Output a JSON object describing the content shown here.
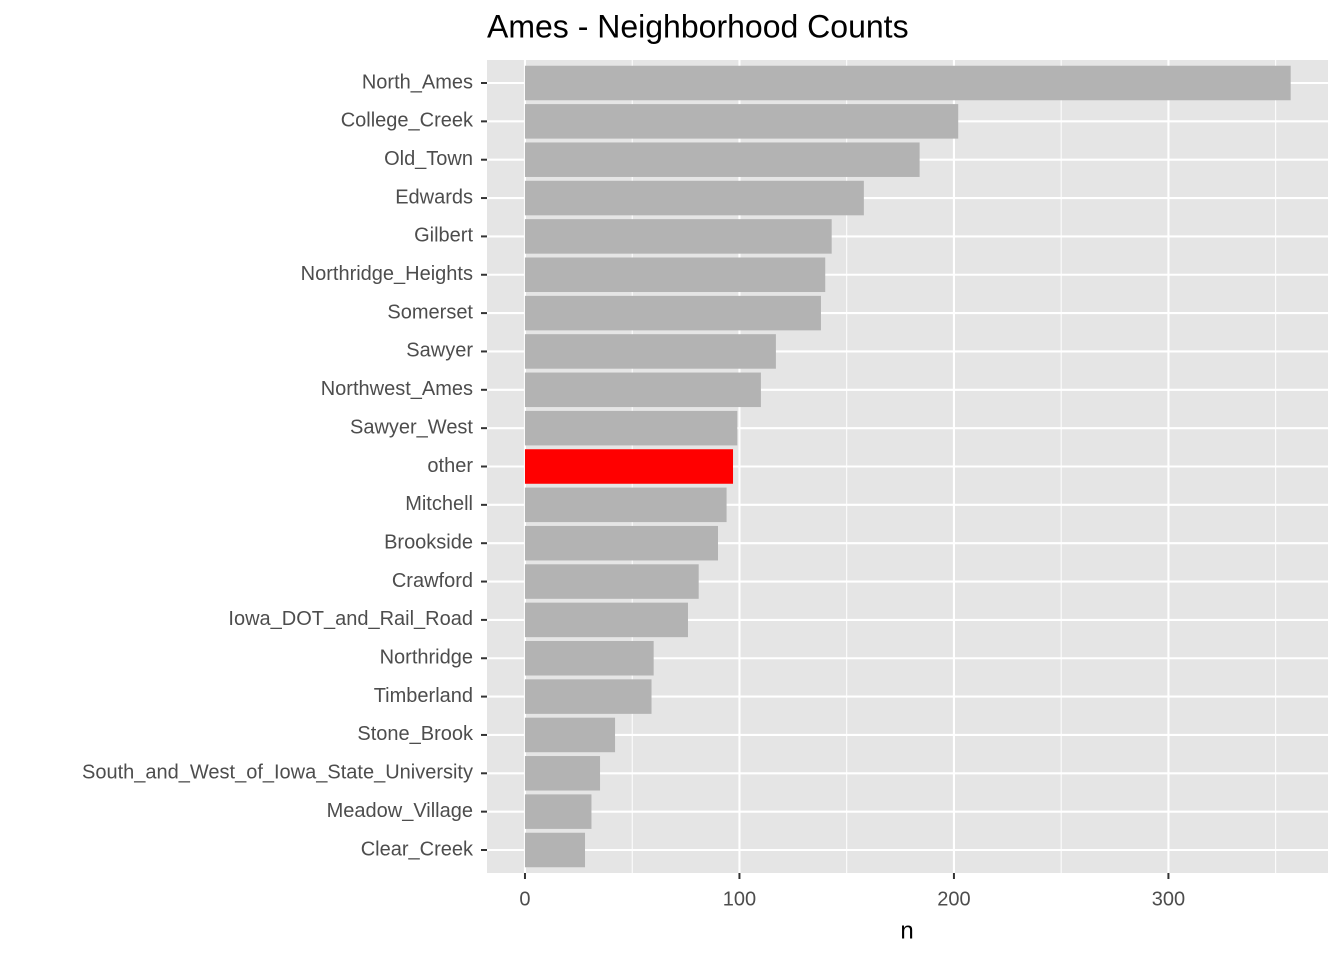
{
  "chart_data": {
    "type": "bar",
    "orientation": "horizontal",
    "title": "Ames - Neighborhood Counts",
    "x_label": "n",
    "categories": [
      "North_Ames",
      "College_Creek",
      "Old_Town",
      "Edwards",
      "Gilbert",
      "Northridge_Heights",
      "Somerset",
      "Sawyer",
      "Northwest_Ames",
      "Sawyer_West",
      "other",
      "Mitchell",
      "Brookside",
      "Crawford",
      "Iowa_DOT_and_Rail_Road",
      "Northridge",
      "Timberland",
      "Stone_Brook",
      "South_and_West_of_Iowa_State_University",
      "Meadow_Village",
      "Clear_Creek"
    ],
    "values": [
      357,
      202,
      184,
      158,
      143,
      140,
      138,
      117,
      110,
      99,
      97,
      94,
      90,
      81,
      76,
      60,
      59,
      42,
      35,
      31,
      28
    ],
    "colors": [
      "#b3b3b3",
      "#b3b3b3",
      "#b3b3b3",
      "#b3b3b3",
      "#b3b3b3",
      "#b3b3b3",
      "#b3b3b3",
      "#b3b3b3",
      "#b3b3b3",
      "#b3b3b3",
      "#ff0000",
      "#b3b3b3",
      "#b3b3b3",
      "#b3b3b3",
      "#b3b3b3",
      "#b3b3b3",
      "#b3b3b3",
      "#b3b3b3",
      "#b3b3b3",
      "#b3b3b3",
      "#b3b3b3"
    ],
    "xlim": [
      -17.7,
      374.4
    ],
    "xticks": [
      0,
      100,
      200,
      300
    ],
    "x_minor_grid": [
      50,
      150,
      250,
      350
    ],
    "grid": true
  }
}
